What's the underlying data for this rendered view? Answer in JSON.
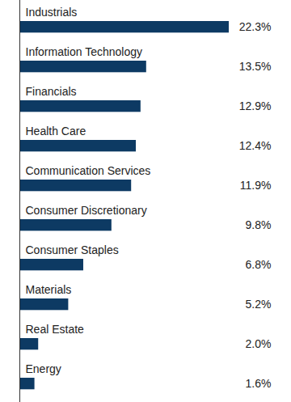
{
  "chart_data": {
    "type": "bar",
    "orientation": "horizontal",
    "categories": [
      "Industrials",
      "Information Technology",
      "Financials",
      "Health Care",
      "Communication Services",
      "Consumer Discretionary",
      "Consumer Staples",
      "Materials",
      "Real Estate",
      "Energy"
    ],
    "values": [
      22.3,
      13.5,
      12.9,
      12.4,
      11.9,
      9.8,
      6.8,
      5.2,
      2.0,
      1.6
    ],
    "value_labels": [
      "22.3%",
      "13.5%",
      "12.9%",
      "12.4%",
      "11.9%",
      "9.8%",
      "6.8%",
      "5.2%",
      "2.0%",
      "1.6%"
    ],
    "color": "#0d3a63",
    "xlim": [
      0,
      22.3
    ],
    "data_labels": true,
    "tick_labels": false,
    "grid": false
  }
}
